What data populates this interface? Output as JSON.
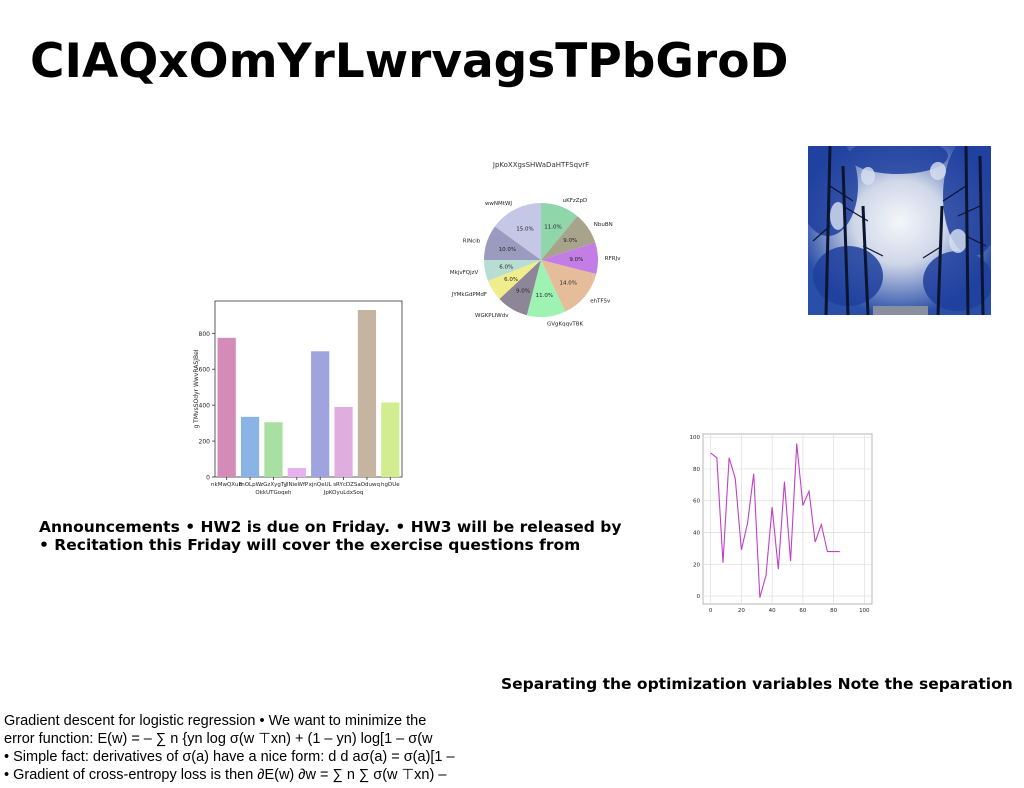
{
  "slide": {
    "title": "CIAQxOmYrLwrvagsTPbGroD",
    "announcements": [
      "Announcements • HW2 is due on Friday. • HW3 will be released by",
      "• Recitation this Friday will cover the exercise questions from"
    ],
    "separation_caption": "Separating the optimization variables Note the separation",
    "gradient_text": [
      "Gradient descent for logistic regression • We want to minimize the",
      "error function: E(w) = – ∑ n {yn log σ(w ⊤xn) + (1 – yn) log[1 – σ(w",
      "• Simple fact: derivatives of σ(a) have a nice form: d d aσ(a) = σ(a)[1 –",
      "• Gradient of cross-entropy loss is then ∂E(w) ∂w = ∑ n ∑ σ(w ⊤xn) –"
    ],
    "photo": {
      "icon": "winter-trees-photo"
    }
  },
  "chart_data": [
    {
      "type": "bar",
      "title": "",
      "xlabel": "",
      "ylabel": "g TMvsSOdyr WwvRASJBeI",
      "categories": [
        "nkMwQXuB",
        "rnOLpW",
        "zGzXygTy",
        "JlNieWfP",
        "xjnQeUL",
        "sRYcDZ",
        "SaOduwq",
        "hgDUe"
      ],
      "category_labels_row2": [
        "OkkUTGoqeh",
        "JpKOyuLdxSoq"
      ],
      "values": [
        775,
        335,
        305,
        50,
        700,
        390,
        930,
        415
      ],
      "colors": [
        "#d48bb8",
        "#8bb4e6",
        "#a8e0a3",
        "#e7b0ee",
        "#9fa4de",
        "#e0aede",
        "#c6b4a2",
        "#d2ed90"
      ],
      "ylim": [
        0,
        980
      ],
      "yticks": [
        0,
        200,
        400,
        600,
        800
      ]
    },
    {
      "type": "pie",
      "title": "JpKoXXgsSHWaDaHTFSqvrF",
      "slices": [
        {
          "label": "uKFzZpD",
          "value": 11.0,
          "pct": "11.0%",
          "color": "#8fd6ab"
        },
        {
          "label": "NbuBN",
          "value": 9.0,
          "pct": "9.0%",
          "color": "#a8a48c"
        },
        {
          "label": "RFRJv",
          "value": 9.0,
          "pct": "9.0%",
          "color": "#c37ee6"
        },
        {
          "label": "ehTFSv",
          "value": 14.0,
          "pct": "14.0%",
          "color": "#e6bd9b"
        },
        {
          "label": "GVgKqqvTBK",
          "value": 11.0,
          "pct": "11.0%",
          "color": "#9ef2b2"
        },
        {
          "label": "WGKPLIWdv",
          "value": 9.0,
          "pct": "9.0%",
          "color": "#8d8696"
        },
        {
          "label": "JYMkGdPMdF",
          "value": 6.0,
          "pct": "6.0%",
          "color": "#efed8c"
        },
        {
          "label": "MkjvFQjzV",
          "value": 6.0,
          "pct": "6.0%",
          "color": "#b8ddd3"
        },
        {
          "label": "RlNcib",
          "value": 10.0,
          "pct": "10.0%",
          "color": "#9b9bc0"
        },
        {
          "label": "wwNMtWJ",
          "value": 15.0,
          "pct": "15.0%",
          "color": "#c4c7e5"
        }
      ]
    },
    {
      "type": "line",
      "title": "",
      "x": [
        0,
        4,
        8,
        12,
        16,
        20,
        24,
        28,
        32,
        36,
        40,
        44,
        48,
        52,
        56,
        60,
        64,
        68,
        72,
        76,
        80,
        84,
        88,
        92,
        96,
        100
      ],
      "series": [
        {
          "values": [
            90,
            87,
            21,
            87,
            74,
            29,
            46,
            77,
            -1,
            13,
            56,
            17,
            72,
            22,
            96,
            57,
            66,
            34,
            45,
            28,
            28,
            28,
            28,
            28,
            28,
            28
          ],
          "color": "#c040c8"
        }
      ],
      "xlim": [
        0,
        100
      ],
      "ylim": [
        0,
        100
      ],
      "xticks": [
        0,
        20,
        40,
        60,
        80,
        100
      ],
      "yticks": [
        0,
        20,
        40,
        60,
        80,
        100
      ],
      "grid": true
    }
  ]
}
